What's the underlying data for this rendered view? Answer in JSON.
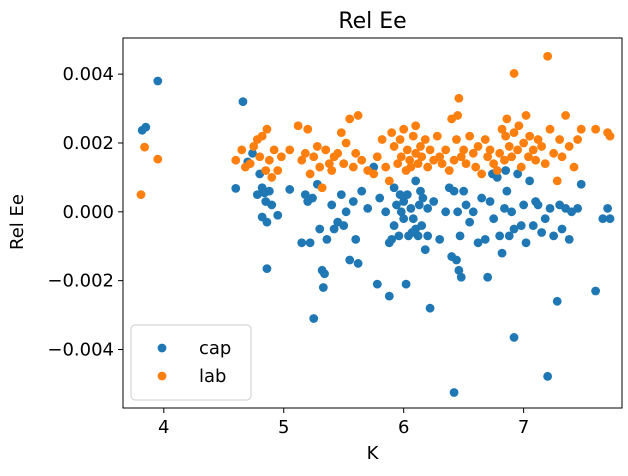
{
  "chart_data": {
    "type": "scatter",
    "title": "Rel Ee",
    "xlabel": "K",
    "ylabel": "Rel Ee",
    "xlim": [
      3.66,
      7.82
    ],
    "ylim": [
      -0.0057,
      0.00505
    ],
    "x_ticks": [
      4,
      5,
      6,
      7
    ],
    "x_tick_labels": [
      "4",
      "5",
      "6",
      "7"
    ],
    "y_ticks": [
      -0.004,
      -0.002,
      0.0,
      0.002,
      0.004
    ],
    "y_tick_labels": [
      "−0.004",
      "−0.002",
      "0.000",
      "0.002",
      "0.004"
    ],
    "grid": false,
    "legend_position": "lower left",
    "series": [
      {
        "name": "cap",
        "color": "#1f77b4",
        "points": [
          [
            3.82,
            0.00237
          ],
          [
            3.85,
            0.00246
          ],
          [
            3.95,
            0.0038
          ],
          [
            4.6,
            0.00068
          ],
          [
            4.66,
            0.0032
          ],
          [
            4.7,
            0.00145
          ],
          [
            4.74,
            0.0017
          ],
          [
            4.78,
            0.0005
          ],
          [
            4.8,
            0.0011
          ],
          [
            4.82,
            0.0007
          ],
          [
            4.82,
            -0.00015
          ],
          [
            4.84,
            0.00055
          ],
          [
            4.85,
            0.0003
          ],
          [
            4.86,
            -0.0003
          ],
          [
            4.86,
            -0.00165
          ],
          [
            4.88,
            0.0006
          ],
          [
            4.9,
            0.0002
          ],
          [
            4.95,
            -0.0001
          ],
          [
            5.05,
            0.00065
          ],
          [
            5.15,
            -0.0009
          ],
          [
            5.18,
            0.0005
          ],
          [
            5.2,
            0.0003
          ],
          [
            5.22,
            -0.0009
          ],
          [
            5.24,
            0.0004
          ],
          [
            5.25,
            -0.0031
          ],
          [
            5.28,
            0.0008
          ],
          [
            5.3,
            -0.0005
          ],
          [
            5.32,
            -0.0017
          ],
          [
            5.33,
            -0.0022
          ],
          [
            5.34,
            -0.0018
          ],
          [
            5.36,
            -0.0008
          ],
          [
            5.4,
            0.0002
          ],
          [
            5.42,
            -0.0005
          ],
          [
            5.45,
            -0.0003
          ],
          [
            5.48,
            0.0005
          ],
          [
            5.5,
            -0.0004
          ],
          [
            5.52,
            0.0
          ],
          [
            5.55,
            -0.0014
          ],
          [
            5.58,
            0.0003
          ],
          [
            5.6,
            -0.0008
          ],
          [
            5.62,
            -0.0015
          ],
          [
            5.65,
            0.0006
          ],
          [
            5.7,
            0.0001
          ],
          [
            5.75,
            0.0013
          ],
          [
            5.78,
            -0.0021
          ],
          [
            5.8,
            0.0004
          ],
          [
            5.85,
            0.0
          ],
          [
            5.88,
            -0.00245
          ],
          [
            5.88,
            -0.0009
          ],
          [
            5.9,
            -0.0008
          ],
          [
            5.92,
            0.0007
          ],
          [
            5.92,
            -0.0004
          ],
          [
            5.94,
            0.0002
          ],
          [
            5.96,
            -0.0007
          ],
          [
            5.97,
            0.0005
          ],
          [
            5.98,
            0.0
          ],
          [
            6.0,
            -0.0002
          ],
          [
            6.0,
            0.0003
          ],
          [
            6.02,
            -0.0021
          ],
          [
            6.03,
            0.0005
          ],
          [
            6.04,
            -0.0007
          ],
          [
            6.06,
            0.0001
          ],
          [
            6.07,
            -0.0006
          ],
          [
            6.08,
            -0.0002
          ],
          [
            6.1,
            0.0009
          ],
          [
            6.1,
            -0.0005
          ],
          [
            6.12,
            -0.0007
          ],
          [
            6.13,
            0.0002
          ],
          [
            6.14,
            0.0006
          ],
          [
            6.15,
            -0.0004
          ],
          [
            6.16,
            0.0004
          ],
          [
            6.18,
            -0.0011
          ],
          [
            6.2,
            -0.0007
          ],
          [
            6.2,
            0.0001
          ],
          [
            6.22,
            -0.0028
          ],
          [
            6.25,
            0.0003
          ],
          [
            6.3,
            -0.0008
          ],
          [
            6.35,
            0.0
          ],
          [
            6.38,
            0.0007
          ],
          [
            6.4,
            -0.0013
          ],
          [
            6.42,
            -0.00525
          ],
          [
            6.42,
            0.0006
          ],
          [
            6.44,
            -0.0014
          ],
          [
            6.45,
            0.0
          ],
          [
            6.46,
            -0.0017
          ],
          [
            6.47,
            -0.0007
          ],
          [
            6.48,
            -0.0019
          ],
          [
            6.5,
            0.0006
          ],
          [
            6.52,
            0.0002
          ],
          [
            6.55,
            -0.0003
          ],
          [
            6.58,
            0.0
          ],
          [
            6.62,
            -0.0009
          ],
          [
            6.65,
            0.0004
          ],
          [
            6.68,
            -0.0008
          ],
          [
            6.7,
            -0.0019
          ],
          [
            6.72,
            0.0003
          ],
          [
            6.74,
            0.0011
          ],
          [
            6.75,
            -0.0002
          ],
          [
            6.78,
            0.001
          ],
          [
            6.8,
            -0.0007
          ],
          [
            6.82,
            -0.0012
          ],
          [
            6.84,
            0.0001
          ],
          [
            6.85,
            0.0012
          ],
          [
            6.86,
            0.0006
          ],
          [
            6.88,
            -0.0007
          ],
          [
            6.9,
            0.0
          ],
          [
            6.92,
            -0.00365
          ],
          [
            6.92,
            -0.0005
          ],
          [
            6.95,
            0.0011
          ],
          [
            6.98,
            -0.0004
          ],
          [
            7.0,
            0.0002
          ],
          [
            7.02,
            -0.0009
          ],
          [
            7.05,
            0.0009
          ],
          [
            7.08,
            -0.0004
          ],
          [
            7.1,
            0.0003
          ],
          [
            7.12,
            0.0002
          ],
          [
            7.15,
            -0.0006
          ],
          [
            7.18,
            -0.0002
          ],
          [
            7.2,
            -0.00478
          ],
          [
            7.22,
            0.0001
          ],
          [
            7.25,
            -0.0007
          ],
          [
            7.28,
            -0.0026
          ],
          [
            7.3,
            0.0002
          ],
          [
            7.32,
            -0.0005
          ],
          [
            7.35,
            0.0001
          ],
          [
            7.38,
            -0.0008
          ],
          [
            7.4,
            0.0
          ],
          [
            7.45,
            0.0001
          ],
          [
            7.48,
            0.0008
          ],
          [
            7.6,
            -0.0023
          ],
          [
            7.66,
            -0.0002
          ],
          [
            7.7,
            0.0001
          ],
          [
            7.72,
            -0.0002
          ]
        ]
      },
      {
        "name": "lab",
        "color": "#ff7f0e",
        "points": [
          [
            3.81,
            0.0005
          ],
          [
            3.84,
            0.00188
          ],
          [
            3.95,
            0.00153
          ],
          [
            4.6,
            0.0015
          ],
          [
            4.65,
            0.0018
          ],
          [
            4.68,
            0.0013
          ],
          [
            4.72,
            0.0014
          ],
          [
            4.75,
            0.0019
          ],
          [
            4.78,
            0.0021
          ],
          [
            4.8,
            0.0016
          ],
          [
            4.82,
            0.0022
          ],
          [
            4.85,
            0.0012
          ],
          [
            4.86,
            0.0024
          ],
          [
            4.88,
            0.0015
          ],
          [
            4.9,
            0.001
          ],
          [
            4.92,
            0.0018
          ],
          [
            4.95,
            0.0012
          ],
          [
            4.98,
            0.0016
          ],
          [
            5.05,
            0.0018
          ],
          [
            5.12,
            0.0025
          ],
          [
            5.15,
            0.0015
          ],
          [
            5.18,
            0.0017
          ],
          [
            5.2,
            0.0024
          ],
          [
            5.22,
            0.0011
          ],
          [
            5.25,
            0.0016
          ],
          [
            5.28,
            0.0019
          ],
          [
            5.3,
            0.0013
          ],
          [
            5.32,
            0.0007
          ],
          [
            5.35,
            0.0018
          ],
          [
            5.38,
            0.0014
          ],
          [
            5.4,
            0.0012
          ],
          [
            5.42,
            0.0016
          ],
          [
            5.45,
            0.0017
          ],
          [
            5.48,
            0.0023
          ],
          [
            5.5,
            0.0014
          ],
          [
            5.52,
            0.002
          ],
          [
            5.55,
            0.0027
          ],
          [
            5.58,
            0.0013
          ],
          [
            5.6,
            0.0017
          ],
          [
            5.62,
            0.0028
          ],
          [
            5.65,
            0.0015
          ],
          [
            5.7,
            0.0012
          ],
          [
            5.75,
            0.0011
          ],
          [
            5.78,
            0.0016
          ],
          [
            5.82,
            0.0021
          ],
          [
            5.85,
            0.0013
          ],
          [
            5.88,
            0.0009
          ],
          [
            5.9,
            0.0023
          ],
          [
            5.92,
            0.0019
          ],
          [
            5.95,
            0.0014
          ],
          [
            5.97,
            0.0021
          ],
          [
            5.98,
            0.0016
          ],
          [
            6.0,
            0.0024
          ],
          [
            6.02,
            0.0012
          ],
          [
            6.03,
            0.0018
          ],
          [
            6.05,
            0.0015
          ],
          [
            6.06,
            0.0013
          ],
          [
            6.08,
            0.0022
          ],
          [
            6.1,
            0.0017
          ],
          [
            6.1,
            0.0025
          ],
          [
            6.12,
            0.0014
          ],
          [
            6.14,
            0.0019
          ],
          [
            6.15,
            0.0016
          ],
          [
            6.18,
            0.0021
          ],
          [
            6.2,
            0.0013
          ],
          [
            6.22,
            0.0018
          ],
          [
            6.25,
            0.0015
          ],
          [
            6.28,
            0.0022
          ],
          [
            6.3,
            0.0016
          ],
          [
            6.32,
            0.0014
          ],
          [
            6.35,
            0.0018
          ],
          [
            6.38,
            0.0012
          ],
          [
            6.4,
            0.0027
          ],
          [
            6.42,
            0.0015
          ],
          [
            6.44,
            0.0021
          ],
          [
            6.45,
            0.0028
          ],
          [
            6.46,
            0.0033
          ],
          [
            6.48,
            0.0016
          ],
          [
            6.5,
            0.0018
          ],
          [
            6.52,
            0.0014
          ],
          [
            6.55,
            0.0022
          ],
          [
            6.58,
            0.0017
          ],
          [
            6.6,
            0.0013
          ],
          [
            6.62,
            0.0019
          ],
          [
            6.65,
            0.0011
          ],
          [
            6.68,
            0.0021
          ],
          [
            6.7,
            0.0016
          ],
          [
            6.72,
            0.0018
          ],
          [
            6.75,
            0.0014
          ],
          [
            6.78,
            0.0012
          ],
          [
            6.8,
            0.0017
          ],
          [
            6.82,
            0.0024
          ],
          [
            6.84,
            0.0015
          ],
          [
            6.85,
            0.0022
          ],
          [
            6.86,
            0.0027
          ],
          [
            6.88,
            0.0019
          ],
          [
            6.9,
            0.0016
          ],
          [
            6.92,
            0.00402
          ],
          [
            6.92,
            0.0023
          ],
          [
            6.95,
            0.0018
          ],
          [
            6.96,
            0.0025
          ],
          [
            6.98,
            0.0013
          ],
          [
            7.0,
            0.002
          ],
          [
            7.02,
            0.0028
          ],
          [
            7.04,
            0.0016
          ],
          [
            7.05,
            0.0022
          ],
          [
            7.08,
            0.0018
          ],
          [
            7.1,
            0.0015
          ],
          [
            7.12,
            0.0021
          ],
          [
            7.15,
            0.0019
          ],
          [
            7.18,
            0.0014
          ],
          [
            7.2,
            0.00452
          ],
          [
            7.22,
            0.0024
          ],
          [
            7.25,
            0.0017
          ],
          [
            7.28,
            0.0009
          ],
          [
            7.3,
            0.0021
          ],
          [
            7.32,
            0.0016
          ],
          [
            7.35,
            0.0028
          ],
          [
            7.38,
            0.0019
          ],
          [
            7.42,
            0.0013
          ],
          [
            7.45,
            0.0021
          ],
          [
            7.48,
            0.0024
          ],
          [
            7.6,
            0.0024
          ],
          [
            7.7,
            0.0023
          ],
          [
            7.72,
            0.0022
          ]
        ]
      }
    ]
  }
}
